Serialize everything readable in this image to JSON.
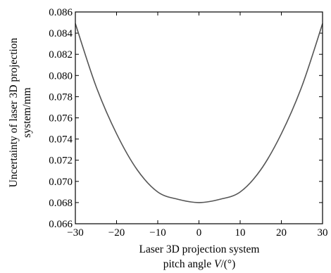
{
  "chart_data": {
    "type": "line",
    "title": "",
    "xlabel_line1": "Laser 3D projection system",
    "xlabel_line2_prefix": "pitch angle ",
    "xlabel_line2_var": "V",
    "xlabel_line2_suffix": "/(°)",
    "ylabel_line1": "Uncertainty of laser 3D projection",
    "ylabel_line2": "system/mm",
    "xlim": [
      -30,
      30
    ],
    "ylim": [
      0.066,
      0.086
    ],
    "x_ticks": [
      -30,
      -20,
      -10,
      0,
      10,
      20,
      30
    ],
    "y_ticks": [
      0.066,
      0.068,
      0.07,
      0.072,
      0.074,
      0.076,
      0.078,
      0.08,
      0.082,
      0.084,
      0.086
    ],
    "x_tick_labels": [
      "−30",
      "−20",
      "−10",
      "0",
      "10",
      "20",
      "30"
    ],
    "y_tick_labels": [
      "0.066",
      "0.068",
      "0.070",
      "0.072",
      "0.074",
      "0.076",
      "0.078",
      "0.080",
      "0.082",
      "0.084",
      "0.086"
    ],
    "grid": false,
    "line_color": "#555555",
    "series": [
      {
        "x": [
          -30,
          -25,
          -20,
          -15,
          -10,
          -5,
          0,
          5,
          10,
          15,
          20,
          25,
          30
        ],
        "values": [
          0.0849,
          0.079,
          0.0745,
          0.0711,
          0.069,
          0.0683,
          0.068,
          0.0683,
          0.069,
          0.0711,
          0.0745,
          0.079,
          0.0849
        ]
      }
    ]
  }
}
